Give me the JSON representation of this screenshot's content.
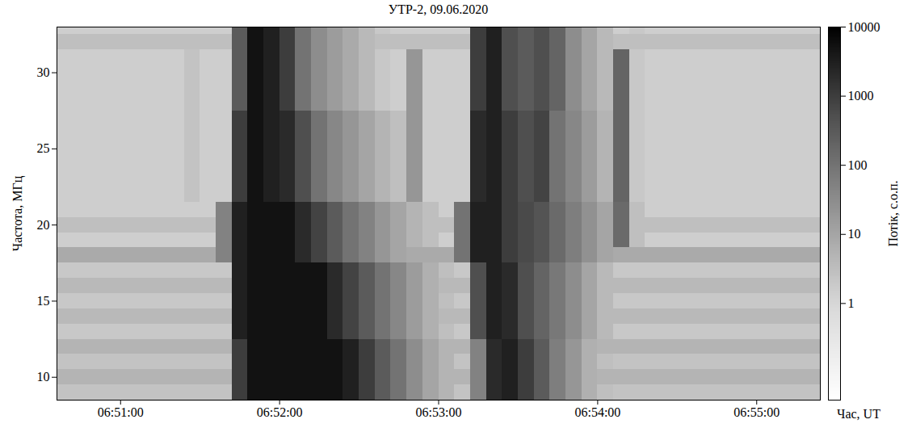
{
  "chart_data": {
    "type": "heatmap",
    "title": "УТР-2, 09.06.2020",
    "x_label": "Час, UT",
    "y_label": "Частота, МГц",
    "x": [
      "06:50:36",
      "06:50:42",
      "06:50:48",
      "06:50:54",
      "06:51:00",
      "06:51:06",
      "06:51:12",
      "06:51:18",
      "06:51:24",
      "06:51:30",
      "06:51:36",
      "06:51:42",
      "06:51:48",
      "06:51:54",
      "06:52:00",
      "06:52:06",
      "06:52:12",
      "06:52:18",
      "06:52:24",
      "06:52:30",
      "06:52:36",
      "06:52:42",
      "06:52:48",
      "06:52:54",
      "06:53:00",
      "06:53:06",
      "06:53:12",
      "06:53:18",
      "06:53:24",
      "06:53:30",
      "06:53:36",
      "06:53:42",
      "06:53:48",
      "06:53:54",
      "06:54:00",
      "06:54:06",
      "06:54:12",
      "06:54:18",
      "06:54:24",
      "06:54:30",
      "06:54:36",
      "06:54:42",
      "06:54:48",
      "06:54:54",
      "06:55:00",
      "06:55:06",
      "06:55:12",
      "06:55:18"
    ],
    "y": [
      9,
      10,
      11,
      12,
      13,
      14,
      15,
      16,
      17,
      18,
      19,
      20,
      21,
      22,
      23,
      24,
      25,
      26,
      27,
      28,
      29,
      30,
      31,
      32,
      33
    ],
    "values": [
      [
        2.5,
        2.5,
        2.5,
        2.5,
        2.5,
        2.5,
        2.5,
        2.5,
        2.5,
        2.5,
        2.5,
        1000,
        5000,
        5000,
        5000,
        5000,
        5000,
        5000,
        3000,
        1000,
        300,
        100,
        30,
        10,
        5,
        2.5,
        50,
        2000,
        3000,
        1000,
        300,
        60,
        20,
        6,
        3,
        2.5,
        2.5,
        2.5,
        2.5,
        2.5,
        2.5,
        2.5,
        2.5,
        2.5,
        2.5,
        2.5,
        2.5,
        2.5
      ],
      [
        5,
        5,
        5,
        5,
        5,
        5,
        5,
        5,
        5,
        5,
        5,
        1000,
        5000,
        5000,
        5000,
        5000,
        5000,
        5000,
        3000,
        1000,
        300,
        100,
        30,
        10,
        5,
        5,
        50,
        2000,
        3000,
        1000,
        300,
        60,
        20,
        6,
        5,
        5,
        5,
        5,
        5,
        5,
        5,
        5,
        5,
        5,
        5,
        5,
        5,
        5
      ],
      [
        2.5,
        2.5,
        2.5,
        2.5,
        2.5,
        2.5,
        2.5,
        2.5,
        2.5,
        2.5,
        2.5,
        1000,
        5000,
        5000,
        5000,
        5000,
        5000,
        5000,
        3000,
        1000,
        300,
        100,
        30,
        10,
        5,
        2.5,
        50,
        2000,
        3000,
        1000,
        300,
        60,
        20,
        6,
        3,
        2.5,
        2.5,
        2.5,
        2.5,
        2.5,
        2.5,
        2.5,
        2.5,
        2.5,
        2.5,
        2.5,
        2.5,
        2.5
      ],
      [
        5,
        5,
        5,
        5,
        5,
        5,
        5,
        5,
        5,
        5,
        5,
        1000,
        5000,
        5000,
        5000,
        5000,
        5000,
        5000,
        3000,
        1000,
        300,
        100,
        30,
        10,
        5,
        5,
        50,
        2000,
        3000,
        1000,
        300,
        60,
        20,
        6,
        5,
        5,
        5,
        5,
        5,
        5,
        5,
        5,
        5,
        5,
        5,
        5,
        5,
        5
      ],
      [
        2,
        2,
        2,
        2,
        2,
        2,
        2,
        2,
        2,
        2,
        2,
        3000,
        5000,
        5000,
        5000,
        5000,
        5000,
        2000,
        800,
        300,
        100,
        40,
        15,
        6,
        3,
        2,
        500,
        3000,
        2000,
        500,
        200,
        80,
        30,
        10,
        4,
        2,
        2,
        2,
        2,
        2,
        2,
        2,
        2,
        2,
        2,
        2,
        2,
        2
      ],
      [
        4,
        4,
        4,
        4,
        4,
        4,
        4,
        4,
        4,
        4,
        4,
        3000,
        5000,
        5000,
        5000,
        5000,
        5000,
        2000,
        800,
        300,
        100,
        40,
        15,
        6,
        4,
        4,
        500,
        3000,
        2000,
        500,
        200,
        80,
        30,
        10,
        4,
        4,
        4,
        4,
        4,
        4,
        4,
        4,
        4,
        4,
        4,
        4,
        4,
        4
      ],
      [
        2,
        2,
        2,
        2,
        2,
        2,
        2,
        2,
        2,
        2,
        2,
        3000,
        5000,
        5000,
        5000,
        5000,
        5000,
        2000,
        800,
        300,
        100,
        40,
        15,
        6,
        3,
        2,
        500,
        3000,
        2000,
        500,
        200,
        80,
        30,
        10,
        4,
        2,
        2,
        2,
        2,
        2,
        2,
        2,
        2,
        2,
        2,
        2,
        2,
        2
      ],
      [
        4,
        4,
        4,
        4,
        4,
        4,
        4,
        4,
        4,
        4,
        4,
        3000,
        5000,
        5000,
        5000,
        5000,
        5000,
        2000,
        800,
        300,
        100,
        40,
        15,
        6,
        4,
        4,
        500,
        3000,
        2000,
        500,
        200,
        80,
        30,
        10,
        4,
        4,
        4,
        4,
        4,
        4,
        4,
        4,
        4,
        4,
        4,
        4,
        4,
        4
      ],
      [
        2,
        2,
        2,
        2,
        2,
        2,
        2,
        2,
        2,
        2,
        2,
        3000,
        5000,
        5000,
        5000,
        5000,
        5000,
        2000,
        800,
        300,
        100,
        40,
        15,
        6,
        3,
        2,
        500,
        3000,
        2000,
        500,
        200,
        80,
        30,
        10,
        4,
        2,
        2,
        2,
        2,
        2,
        2,
        2,
        2,
        2,
        2,
        2,
        2,
        2
      ],
      [
        8,
        8,
        8,
        8,
        8,
        8,
        8,
        8,
        8,
        8,
        50,
        3000,
        5000,
        5000,
        5000,
        2000,
        800,
        300,
        100,
        50,
        20,
        10,
        8,
        8,
        8,
        100,
        3000,
        3000,
        1000,
        600,
        400,
        150,
        60,
        25,
        10,
        8,
        8,
        8,
        8,
        8,
        8,
        8,
        8,
        8,
        8,
        8,
        8,
        8
      ],
      [
        1.5,
        1.5,
        1.5,
        1.5,
        1.5,
        1.5,
        1.5,
        1.5,
        1.5,
        1.5,
        50,
        3000,
        5000,
        5000,
        5000,
        2000,
        800,
        300,
        100,
        50,
        20,
        10,
        5,
        3,
        1.5,
        100,
        3000,
        3000,
        1000,
        600,
        400,
        150,
        60,
        25,
        10,
        150,
        3,
        1.5,
        1.5,
        1.5,
        1.5,
        1.5,
        1.5,
        1.5,
        1.5,
        1.5,
        1.5,
        1.5
      ],
      [
        3,
        3,
        3,
        3,
        3,
        3,
        3,
        3,
        3,
        3,
        50,
        3000,
        5000,
        5000,
        5000,
        2000,
        800,
        300,
        100,
        50,
        20,
        10,
        5,
        3,
        3,
        100,
        3000,
        3000,
        1000,
        600,
        400,
        150,
        60,
        25,
        10,
        150,
        3,
        3,
        3,
        3,
        3,
        3,
        3,
        3,
        3,
        3,
        3,
        3
      ],
      [
        1.5,
        1.5,
        1.5,
        1.5,
        1.5,
        1.5,
        1.5,
        1.5,
        1.5,
        1.5,
        50,
        3000,
        5000,
        5000,
        5000,
        2000,
        800,
        300,
        100,
        50,
        20,
        10,
        5,
        3,
        1.5,
        100,
        3000,
        3000,
        1000,
        600,
        400,
        150,
        60,
        25,
        10,
        150,
        3,
        1.5,
        1.5,
        1.5,
        1.5,
        1.5,
        1.5,
        1.5,
        1.5,
        1.5,
        1.5,
        1.5
      ],
      [
        1.5,
        1.5,
        1.5,
        1.5,
        1.5,
        1.5,
        1.5,
        1.5,
        2.5,
        1.5,
        1.5,
        1000,
        5000,
        3000,
        2000,
        500,
        100,
        40,
        20,
        10,
        5,
        3,
        20,
        1.5,
        1.5,
        1.5,
        2000,
        3000,
        1000,
        500,
        800,
        100,
        40,
        15,
        5,
        200,
        2,
        1.5,
        1.5,
        1.5,
        1.5,
        1.5,
        1.5,
        1.5,
        1.5,
        1.5,
        1.5,
        1.5
      ],
      [
        1.5,
        1.5,
        1.5,
        1.5,
        1.5,
        1.5,
        1.5,
        1.5,
        2.5,
        1.5,
        1.5,
        1000,
        5000,
        3000,
        2000,
        500,
        100,
        40,
        20,
        10,
        5,
        3,
        20,
        1.5,
        1.5,
        1.5,
        2000,
        3000,
        1000,
        500,
        800,
        100,
        40,
        15,
        5,
        200,
        2,
        1.5,
        1.5,
        1.5,
        1.5,
        1.5,
        1.5,
        1.5,
        1.5,
        1.5,
        1.5,
        1.5
      ],
      [
        1.5,
        1.5,
        1.5,
        1.5,
        1.5,
        1.5,
        1.5,
        1.5,
        2.5,
        1.5,
        1.5,
        1000,
        5000,
        3000,
        2000,
        500,
        100,
        40,
        20,
        10,
        5,
        3,
        20,
        1.5,
        1.5,
        1.5,
        2000,
        3000,
        1000,
        500,
        800,
        100,
        40,
        15,
        5,
        200,
        2,
        1.5,
        1.5,
        1.5,
        1.5,
        1.5,
        1.5,
        1.5,
        1.5,
        1.5,
        1.5,
        1.5
      ],
      [
        1.5,
        1.5,
        1.5,
        1.5,
        1.5,
        1.5,
        1.5,
        1.5,
        2.5,
        1.5,
        1.5,
        1000,
        5000,
        3000,
        2000,
        500,
        100,
        40,
        20,
        10,
        5,
        3,
        20,
        1.5,
        1.5,
        1.5,
        2000,
        3000,
        1000,
        500,
        800,
        100,
        40,
        15,
        5,
        200,
        2,
        1.5,
        1.5,
        1.5,
        1.5,
        1.5,
        1.5,
        1.5,
        1.5,
        1.5,
        1.5,
        1.5
      ],
      [
        1.5,
        1.5,
        1.5,
        1.5,
        1.5,
        1.5,
        1.5,
        1.5,
        2.5,
        1.5,
        1.5,
        1000,
        5000,
        3000,
        2000,
        500,
        100,
        40,
        20,
        10,
        5,
        3,
        20,
        1.5,
        1.5,
        1.5,
        2000,
        3000,
        1000,
        500,
        800,
        100,
        40,
        15,
        5,
        200,
        2,
        1.5,
        1.5,
        1.5,
        1.5,
        1.5,
        1.5,
        1.5,
        1.5,
        1.5,
        1.5,
        1.5
      ],
      [
        1.5,
        1.5,
        1.5,
        1.5,
        1.5,
        1.5,
        1.5,
        1.5,
        2.5,
        1.5,
        1.5,
        1000,
        5000,
        3000,
        2000,
        500,
        100,
        40,
        20,
        10,
        5,
        3,
        20,
        1.5,
        1.5,
        1.5,
        2000,
        3000,
        1000,
        500,
        800,
        100,
        40,
        15,
        5,
        200,
        2,
        1.5,
        1.5,
        1.5,
        1.5,
        1.5,
        1.5,
        1.5,
        1.5,
        1.5,
        1.5,
        1.5
      ],
      [
        1.5,
        1.5,
        1.5,
        1.5,
        1.5,
        1.5,
        1.5,
        1.5,
        2.5,
        1.5,
        1.5,
        300,
        5000,
        3000,
        1000,
        100,
        30,
        15,
        8,
        4,
        2,
        1.5,
        20,
        1.5,
        1.5,
        1.5,
        1000,
        3000,
        500,
        300,
        500,
        200,
        30,
        10,
        4,
        200,
        2,
        1.5,
        1.5,
        1.5,
        1.5,
        1.5,
        1.5,
        1.5,
        1.5,
        1.5,
        1.5,
        1.5
      ],
      [
        1.5,
        1.5,
        1.5,
        1.5,
        1.5,
        1.5,
        1.5,
        1.5,
        2.5,
        1.5,
        1.5,
        300,
        5000,
        3000,
        1000,
        100,
        30,
        15,
        8,
        4,
        2,
        1.5,
        20,
        1.5,
        1.5,
        1.5,
        1000,
        3000,
        500,
        300,
        500,
        200,
        30,
        10,
        4,
        200,
        2,
        1.5,
        1.5,
        1.5,
        1.5,
        1.5,
        1.5,
        1.5,
        1.5,
        1.5,
        1.5,
        1.5
      ],
      [
        1.5,
        1.5,
        1.5,
        1.5,
        1.5,
        1.5,
        1.5,
        1.5,
        2.5,
        1.5,
        1.5,
        300,
        5000,
        3000,
        1000,
        100,
        30,
        15,
        8,
        4,
        2,
        1.5,
        20,
        1.5,
        1.5,
        1.5,
        1000,
        3000,
        500,
        300,
        500,
        200,
        30,
        10,
        4,
        200,
        2,
        1.5,
        1.5,
        1.5,
        1.5,
        1.5,
        1.5,
        1.5,
        1.5,
        1.5,
        1.5,
        1.5
      ],
      [
        1.5,
        1.5,
        1.5,
        1.5,
        1.5,
        1.5,
        1.5,
        1.5,
        2.5,
        1.5,
        1.5,
        300,
        5000,
        3000,
        1000,
        100,
        30,
        15,
        8,
        4,
        2,
        1.5,
        20,
        1.5,
        1.5,
        1.5,
        1000,
        3000,
        500,
        300,
        500,
        200,
        30,
        10,
        4,
        200,
        2,
        1.5,
        1.5,
        1.5,
        1.5,
        1.5,
        1.5,
        1.5,
        1.5,
        1.5,
        1.5,
        1.5
      ],
      [
        3,
        3,
        3,
        3,
        3,
        3,
        3,
        3,
        3,
        3,
        3,
        300,
        5000,
        3000,
        1000,
        100,
        30,
        15,
        8,
        4,
        3,
        3,
        3,
        3,
        3,
        3,
        1000,
        3000,
        500,
        300,
        500,
        200,
        30,
        10,
        4,
        3,
        3,
        3,
        3,
        3,
        3,
        3,
        3,
        3,
        3,
        3,
        3,
        3
      ],
      [
        1.5,
        1.5,
        1.5,
        1.5,
        1.5,
        1.5,
        1.5,
        1.5,
        1.5,
        1.5,
        1.5,
        300,
        5000,
        3000,
        1000,
        100,
        30,
        15,
        8,
        4,
        2,
        1.5,
        1.5,
        1.5,
        1.5,
        1.5,
        1000,
        3000,
        500,
        300,
        500,
        200,
        30,
        10,
        4,
        1.5,
        2,
        1.5,
        1.5,
        1.5,
        1.5,
        1.5,
        1.5,
        1.5,
        1.5,
        1.5,
        1.5,
        1.5
      ]
    ],
    "xlim": [
      "06:50:36",
      "06:55:24"
    ],
    "xticks": [
      "06:51:00",
      "06:52:00",
      "06:53:00",
      "06:54:00",
      "06:55:00"
    ],
    "ylim": [
      8.5,
      33
    ],
    "yticks": [
      10,
      15,
      20,
      25,
      30
    ],
    "grid": false,
    "colorbar": {
      "label": "Потік, с.о.п.",
      "range": [
        0.04,
        10000
      ],
      "ticks": [
        1,
        10,
        100,
        1000,
        10000
      ],
      "log": true,
      "colors": [
        "#ffffff",
        "#d9d9d9",
        "#969696",
        "#525252",
        "#000000"
      ]
    }
  }
}
